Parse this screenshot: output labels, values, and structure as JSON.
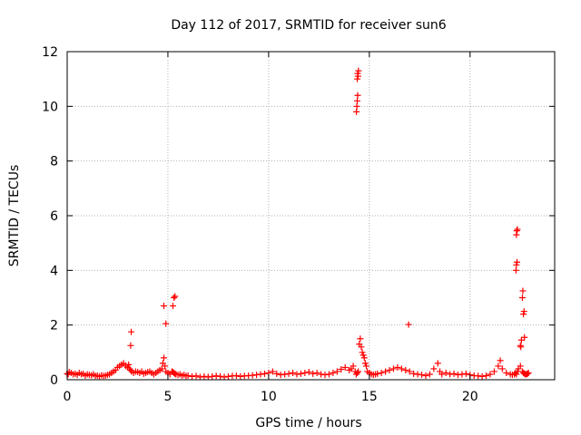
{
  "chart_data": {
    "type": "scatter",
    "title": "Day 112 of 2017, SRMTID for receiver sun6",
    "xlabel": "GPS time / hours",
    "ylabel": "SRMTID / TECUs",
    "xlim": [
      0,
      24.2
    ],
    "ylim": [
      0,
      12
    ],
    "xticks": [
      0,
      5,
      10,
      15,
      20
    ],
    "yticks": [
      0,
      2,
      4,
      6,
      8,
      10,
      12
    ],
    "grid": true,
    "marker": "+",
    "series": [
      {
        "color": "#ff0000",
        "x": [
          0.0,
          0.05,
          0.1,
          0.2,
          0.3,
          0.4,
          0.5,
          0.6,
          0.7,
          0.8,
          0.9,
          1.0,
          1.1,
          1.2,
          1.3,
          1.4,
          1.5,
          1.6,
          1.7,
          1.8,
          1.9,
          2.0,
          2.1,
          2.2,
          2.3,
          2.4,
          2.5,
          2.6,
          2.7,
          2.8,
          2.9,
          3.0,
          3.05,
          3.1,
          3.15,
          3.2,
          3.3,
          3.4,
          3.5,
          3.6,
          3.7,
          3.8,
          3.9,
          4.0,
          4.1,
          4.2,
          4.3,
          4.4,
          4.5,
          4.6,
          4.7,
          4.75,
          4.8,
          4.85,
          4.9,
          5.0,
          5.1,
          5.2,
          5.25,
          5.3,
          5.35,
          5.4,
          5.5,
          5.6,
          5.7,
          5.8,
          5.9,
          6.0,
          6.2,
          6.4,
          6.6,
          6.8,
          7.0,
          7.2,
          7.4,
          7.6,
          7.8,
          8.0,
          8.2,
          8.4,
          8.6,
          8.8,
          9.0,
          9.2,
          9.4,
          9.6,
          9.8,
          10.0,
          10.2,
          10.4,
          10.6,
          10.8,
          11.0,
          11.2,
          11.4,
          11.6,
          11.8,
          12.0,
          12.2,
          12.4,
          12.6,
          12.8,
          13.0,
          13.2,
          13.4,
          13.6,
          13.8,
          14.0,
          14.1,
          14.2,
          14.3,
          14.35,
          14.4,
          14.45,
          14.5,
          14.55,
          14.6,
          14.65,
          14.7,
          14.75,
          14.8,
          14.85,
          14.9,
          15.0,
          15.1,
          15.2,
          15.3,
          15.4,
          15.6,
          15.8,
          16.0,
          16.2,
          16.4,
          16.6,
          16.8,
          17.0,
          17.2,
          17.4,
          17.6,
          17.8,
          18.0,
          18.2,
          18.4,
          18.5,
          18.6,
          18.8,
          19.0,
          19.2,
          19.4,
          19.6,
          19.8,
          20.0,
          20.2,
          20.4,
          20.6,
          20.8,
          21.0,
          21.2,
          21.4,
          21.5,
          21.6,
          21.8,
          22.0,
          22.1,
          22.2,
          22.25,
          22.3,
          22.35,
          22.4,
          22.5,
          22.6,
          22.65,
          22.7,
          22.75,
          22.8,
          22.85,
          22.9,
          14.4,
          14.42,
          14.44,
          14.46,
          14.38,
          14.36,
          14.4,
          14.42,
          4.8,
          4.9,
          5.25,
          5.3,
          5.35,
          3.15,
          3.18,
          16.95,
          22.3,
          22.32,
          22.35,
          22.28,
          22.3,
          22.33,
          22.6,
          22.62,
          22.65,
          22.68,
          22.7,
          22.55,
          22.5,
          22.52
        ],
        "y": [
          0.22,
          0.2,
          0.28,
          0.25,
          0.2,
          0.22,
          0.18,
          0.25,
          0.2,
          0.22,
          0.15,
          0.2,
          0.18,
          0.16,
          0.2,
          0.14,
          0.15,
          0.12,
          0.16,
          0.14,
          0.15,
          0.18,
          0.2,
          0.25,
          0.3,
          0.35,
          0.45,
          0.5,
          0.55,
          0.6,
          0.5,
          0.45,
          0.55,
          0.4,
          0.35,
          0.3,
          0.25,
          0.3,
          0.28,
          0.25,
          0.3,
          0.22,
          0.25,
          0.28,
          0.3,
          0.25,
          0.2,
          0.25,
          0.3,
          0.35,
          0.4,
          0.6,
          0.8,
          0.5,
          0.3,
          0.25,
          0.2,
          0.3,
          0.28,
          0.25,
          0.22,
          0.2,
          0.18,
          0.2,
          0.15,
          0.18,
          0.14,
          0.15,
          0.12,
          0.14,
          0.1,
          0.12,
          0.1,
          0.12,
          0.14,
          0.12,
          0.1,
          0.12,
          0.14,
          0.15,
          0.12,
          0.14,
          0.15,
          0.16,
          0.18,
          0.2,
          0.22,
          0.25,
          0.3,
          0.22,
          0.18,
          0.2,
          0.22,
          0.25,
          0.2,
          0.22,
          0.25,
          0.28,
          0.22,
          0.25,
          0.2,
          0.18,
          0.2,
          0.25,
          0.3,
          0.38,
          0.45,
          0.35,
          0.4,
          0.5,
          0.3,
          0.2,
          0.25,
          0.3,
          1.3,
          1.5,
          1.2,
          1.0,
          0.9,
          0.8,
          0.6,
          0.5,
          0.3,
          0.25,
          0.2,
          0.18,
          0.2,
          0.22,
          0.25,
          0.3,
          0.35,
          0.4,
          0.45,
          0.4,
          0.35,
          0.3,
          0.22,
          0.2,
          0.18,
          0.15,
          0.2,
          0.4,
          0.6,
          0.3,
          0.2,
          0.25,
          0.2,
          0.22,
          0.18,
          0.2,
          0.22,
          0.18,
          0.15,
          0.14,
          0.12,
          0.15,
          0.2,
          0.3,
          0.5,
          0.7,
          0.4,
          0.25,
          0.2,
          0.18,
          0.2,
          0.25,
          0.2,
          0.3,
          0.4,
          0.5,
          0.3,
          0.25,
          0.22,
          0.2,
          0.2,
          0.22,
          0.25,
          11.0,
          11.2,
          11.1,
          11.3,
          10.0,
          9.8,
          10.2,
          10.4,
          2.7,
          2.05,
          2.7,
          3.0,
          3.05,
          1.25,
          1.75,
          2.02,
          5.3,
          5.45,
          5.5,
          4.0,
          4.2,
          4.3,
          3.0,
          3.25,
          2.4,
          2.5,
          1.55,
          1.45,
          1.25,
          1.2
        ]
      }
    ]
  }
}
